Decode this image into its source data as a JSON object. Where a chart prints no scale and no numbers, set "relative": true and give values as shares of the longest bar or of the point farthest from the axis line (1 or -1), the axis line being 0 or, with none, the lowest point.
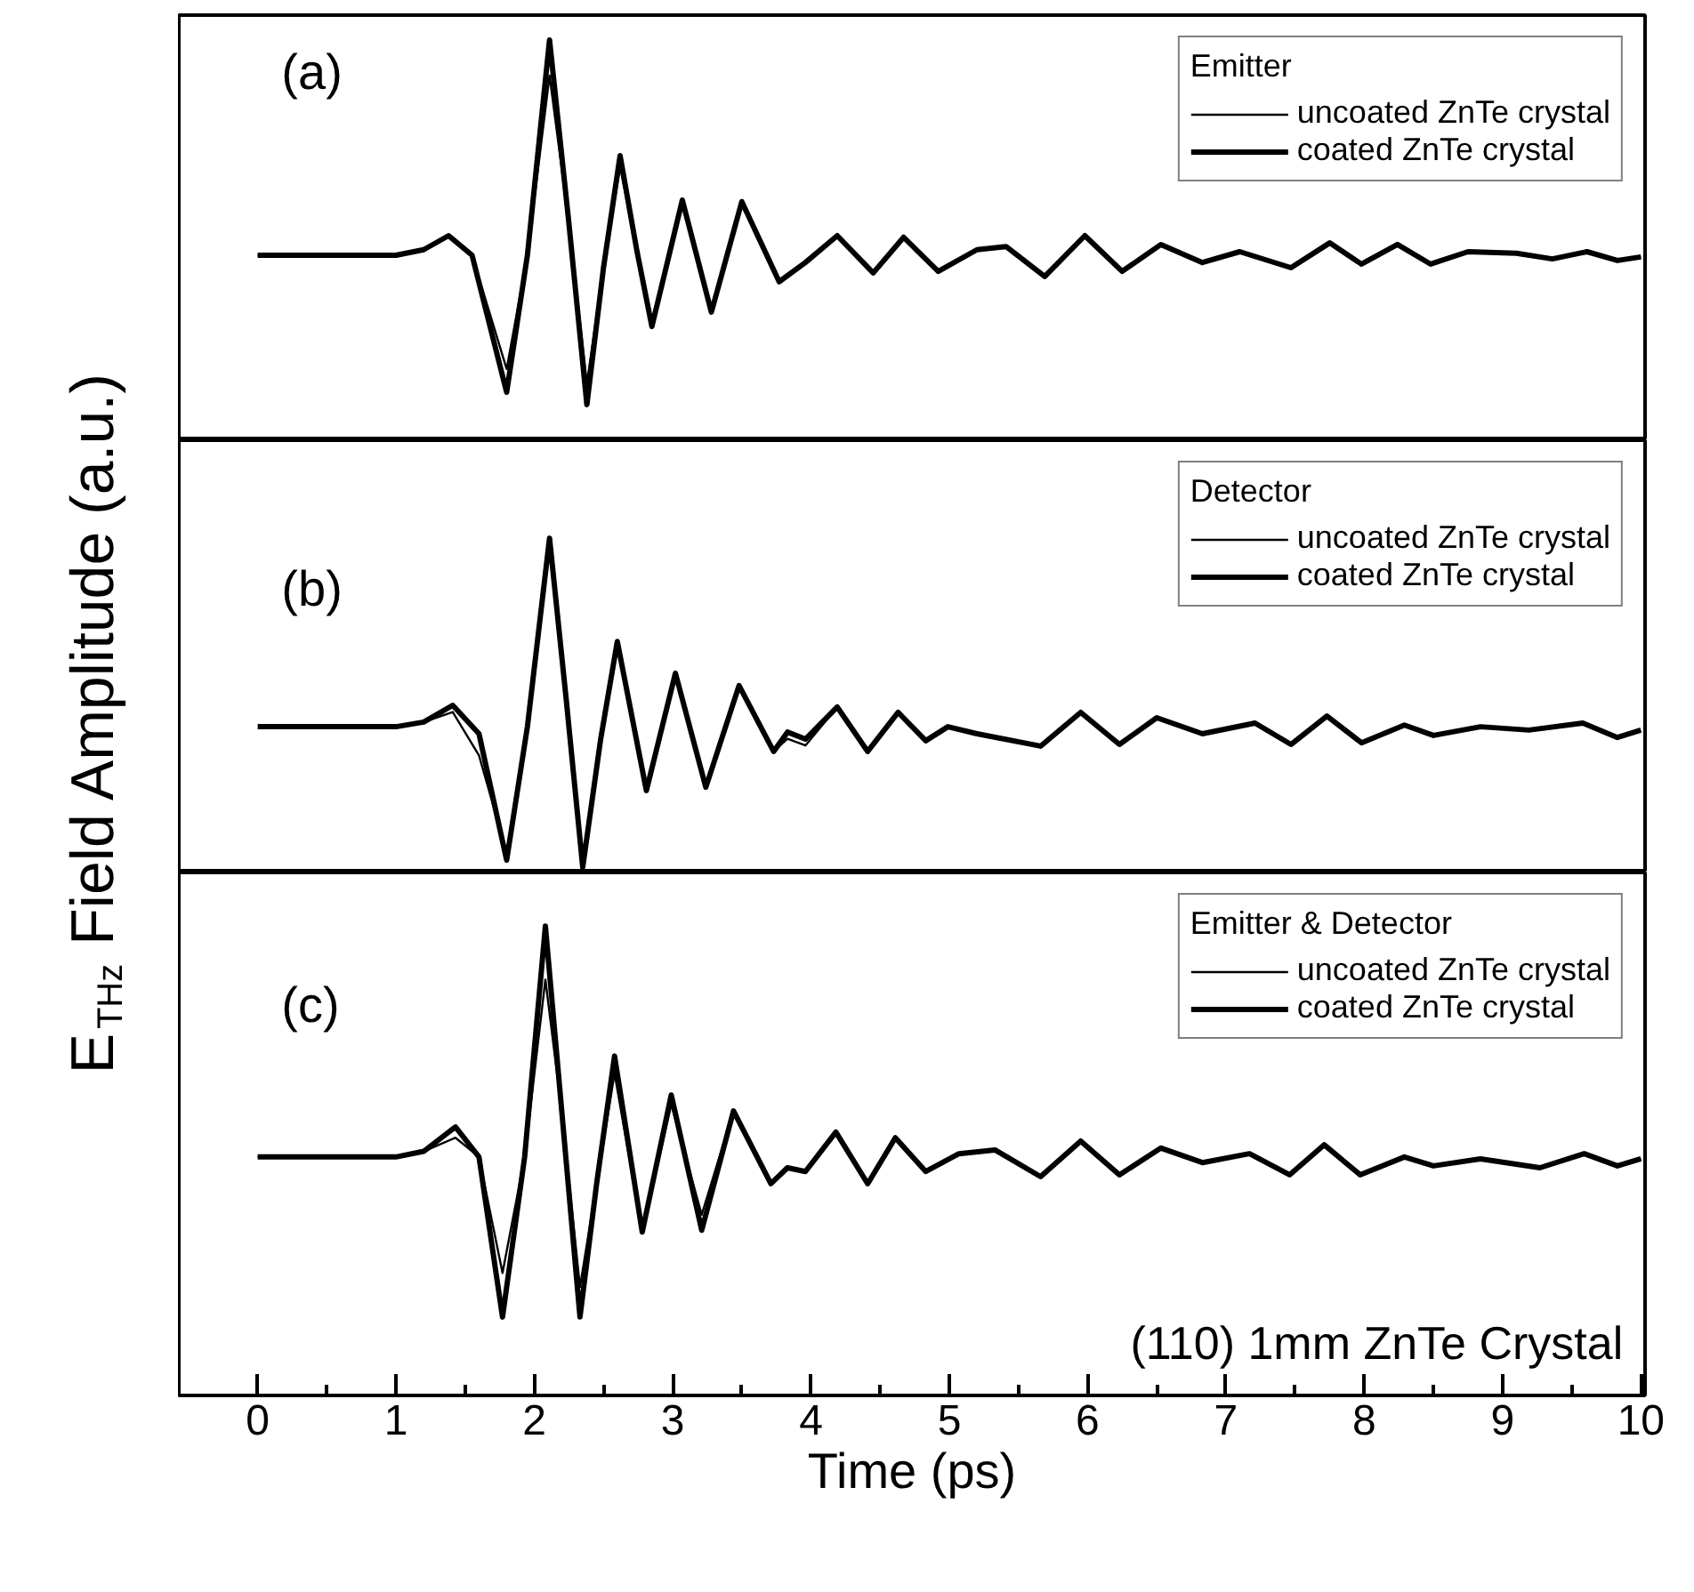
{
  "chart_data": [
    {
      "type": "line",
      "relative": true,
      "legend_title": "Emitter",
      "annotations": [
        "(a)"
      ],
      "legend": "top right",
      "tick_labels": false,
      "xlim": [
        -0.57,
        10.03
      ],
      "x": [
        0,
        1.0,
        1.2,
        1.38,
        1.55,
        1.8,
        1.95,
        2.11,
        2.25,
        2.38,
        2.5,
        2.62,
        2.74,
        2.85,
        3.07,
        3.28,
        3.5,
        3.77,
        3.96,
        4.19,
        4.45,
        4.67,
        4.92,
        5.2,
        5.41,
        5.69,
        5.98,
        6.25,
        6.53,
        6.83,
        7.1,
        7.47,
        7.75,
        7.98,
        8.24,
        8.48,
        8.75,
        9.1,
        9.36,
        9.61,
        9.83,
        10
      ],
      "series": [
        {
          "name": "uncoated ZnTe crystal",
          "color": "#000000",
          "values": [
            0.462,
            0.462,
            0.476,
            0.511,
            0.462,
            0.178,
            0.462,
            0.911,
            0.542,
            0.142,
            0.431,
            0.684,
            0.476,
            0.298,
            0.6,
            0.32,
            0.596,
            0.396,
            0.444,
            0.511,
            0.418,
            0.507,
            0.422,
            0.476,
            0.484,
            0.409,
            0.511,
            0.422,
            0.489,
            0.444,
            0.471,
            0.431,
            0.493,
            0.44,
            0.489,
            0.44,
            0.471,
            0.467,
            0.453,
            0.471,
            0.449,
            0.458
          ]
        },
        {
          "name": "coated ZnTe crystal",
          "color": "#000000",
          "values": [
            0.462,
            0.462,
            0.476,
            0.511,
            0.462,
            0.12,
            0.462,
            1.0,
            0.542,
            0.089,
            0.431,
            0.711,
            0.476,
            0.284,
            0.6,
            0.32,
            0.596,
            0.396,
            0.444,
            0.511,
            0.418,
            0.507,
            0.422,
            0.476,
            0.484,
            0.409,
            0.511,
            0.422,
            0.489,
            0.444,
            0.471,
            0.431,
            0.493,
            0.44,
            0.489,
            0.44,
            0.471,
            0.467,
            0.453,
            0.471,
            0.449,
            0.458
          ]
        }
      ]
    },
    {
      "type": "line",
      "relative": true,
      "legend_title": "Detector",
      "ylabel": "E$_{THz}$ Field Amplitude (a.u.)",
      "annotations": [
        "(b)"
      ],
      "legend": "top right",
      "tick_labels": false,
      "xlim": [
        -0.57,
        10.03
      ],
      "x": [
        0,
        1.0,
        1.2,
        1.41,
        1.6,
        1.8,
        1.95,
        2.11,
        2.23,
        2.35,
        2.48,
        2.6,
        2.81,
        3.02,
        3.24,
        3.48,
        3.73,
        3.83,
        3.96,
        4.19,
        4.41,
        4.63,
        4.83,
        4.99,
        5.2,
        5.66,
        5.95,
        6.23,
        6.5,
        6.83,
        7.21,
        7.47,
        7.73,
        7.98,
        8.29,
        8.5,
        8.84,
        9.19,
        9.58,
        9.83,
        10
      ],
      "series": [
        {
          "name": "uncoated ZnTe crystal",
          "color": "#000000",
          "values": [
            null,
            null,
            0.45,
            0.48,
            0.35,
            0.06,
            0.436,
            null,
            null,
            null,
            null,
            null,
            null,
            null,
            null,
            null,
            0.362,
            0.4,
            0.38,
            0.495,
            null,
            null,
            null,
            null,
            null,
            null,
            null,
            null,
            null,
            null,
            null,
            null,
            null,
            null,
            null,
            null,
            null,
            null,
            null,
            null,
            null
          ]
        },
        {
          "name": "coated ZnTe crystal",
          "color": "#000000",
          "values": [
            0.436,
            0.436,
            0.45,
            0.5,
            0.415,
            0.037,
            0.436,
            1.0,
            0.52,
            0.016,
            0.4,
            0.691,
            0.245,
            0.596,
            0.255,
            0.559,
            0.362,
            0.42,
            0.399,
            0.495,
            0.362,
            0.479,
            0.394,
            0.436,
            0.415,
            0.378,
            0.479,
            0.383,
            0.463,
            0.415,
            0.447,
            0.383,
            0.468,
            0.388,
            0.441,
            0.41,
            0.436,
            0.426,
            0.447,
            0.404,
            0.426
          ]
        }
      ]
    },
    {
      "type": "line",
      "relative": true,
      "legend_title": "Emitter & Detector",
      "xlabel": "Time (ps)",
      "annotations": [
        "(c)",
        "(110) 1mm ZnTe Crystal"
      ],
      "legend": "top right",
      "tick_labels": "x",
      "xlim": [
        -0.57,
        10.03
      ],
      "xticks": [
        0,
        1,
        2,
        3,
        4,
        5,
        6,
        7,
        8,
        9,
        10
      ],
      "x": [
        0,
        1.0,
        1.2,
        1.43,
        1.6,
        1.77,
        1.93,
        2.08,
        2.2,
        2.33,
        2.45,
        2.58,
        2.78,
        2.99,
        3.21,
        3.44,
        3.71,
        3.83,
        3.96,
        4.18,
        4.41,
        4.61,
        4.83,
        5.07,
        5.33,
        5.66,
        5.95,
        6.23,
        6.53,
        6.83,
        7.17,
        7.46,
        7.71,
        7.97,
        8.29,
        8.5,
        8.84,
        9.27,
        9.59,
        9.83,
        10
      ],
      "series": [
        {
          "name": "uncoated ZnTe crystal",
          "color": "#000000",
          "values": [
            0.508,
            0.508,
            0.52,
            0.549,
            0.508,
            0.261,
            0.508,
            0.886,
            0.6,
            0.231,
            0.45,
            0.686,
            0.348,
            0.62,
            0.385,
            0.606,
            0.451,
            0.485,
            0.477,
            0.561,
            0.451,
            0.549,
            0.477,
            0.515,
            0.523,
            0.466,
            0.542,
            0.47,
            0.527,
            0.496,
            0.515,
            0.47,
            0.534,
            0.47,
            0.508,
            0.489,
            0.504,
            0.485,
            0.515,
            0.489,
            0.504
          ]
        },
        {
          "name": "coated ZnTe crystal",
          "color": "#000000",
          "values": [
            0.508,
            0.508,
            0.52,
            0.572,
            0.508,
            0.167,
            0.508,
            1.0,
            0.6,
            0.167,
            0.45,
            0.723,
            0.348,
            0.64,
            0.352,
            0.606,
            0.451,
            0.485,
            0.477,
            0.561,
            0.451,
            0.549,
            0.477,
            0.515,
            0.523,
            0.466,
            0.542,
            0.47,
            0.527,
            0.496,
            0.515,
            0.47,
            0.534,
            0.47,
            0.508,
            0.489,
            0.504,
            0.485,
            0.515,
            0.489,
            0.504
          ]
        }
      ]
    }
  ]
}
